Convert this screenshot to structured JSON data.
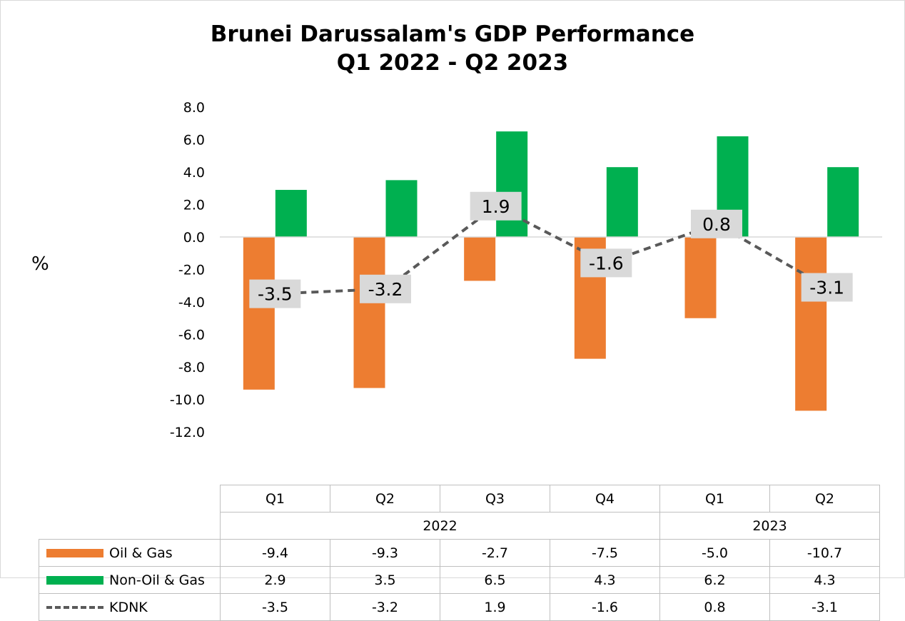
{
  "chart_data": {
    "type": "bar",
    "title": [
      "Brunei Darussalam's GDP Performance",
      "Q1 2022 - Q2 2023"
    ],
    "ylabel": "%",
    "ylim": [
      -12.0,
      8.0
    ],
    "yticks": [
      "8.0",
      "6.0",
      "4.0",
      "2.0",
      "0.0",
      "-2.0",
      "-4.0",
      "-6.0",
      "-8.0",
      "-10.0",
      "-12.0"
    ],
    "categories": [
      "Q1",
      "Q2",
      "Q3",
      "Q4",
      "Q1",
      "Q2"
    ],
    "years": [
      {
        "label": "2022",
        "span": 4
      },
      {
        "label": "2023",
        "span": 2
      }
    ],
    "series": [
      {
        "name": "Oil & Gas",
        "kind": "bar",
        "color": "#ed7d31",
        "values": [
          -9.4,
          -9.3,
          -2.7,
          -7.5,
          -5.0,
          -10.7
        ]
      },
      {
        "name": "Non-Oil & Gas",
        "kind": "bar",
        "color": "#00b050",
        "values": [
          2.9,
          3.5,
          6.5,
          4.3,
          6.2,
          4.3
        ]
      },
      {
        "name": "KDNK",
        "kind": "line",
        "style": "dashed",
        "color": "#595959",
        "values": [
          -3.5,
          -3.2,
          1.9,
          -1.6,
          0.8,
          -3.1
        ]
      }
    ],
    "data_table": true,
    "grid": false,
    "label_background": "#d9d9d9"
  }
}
